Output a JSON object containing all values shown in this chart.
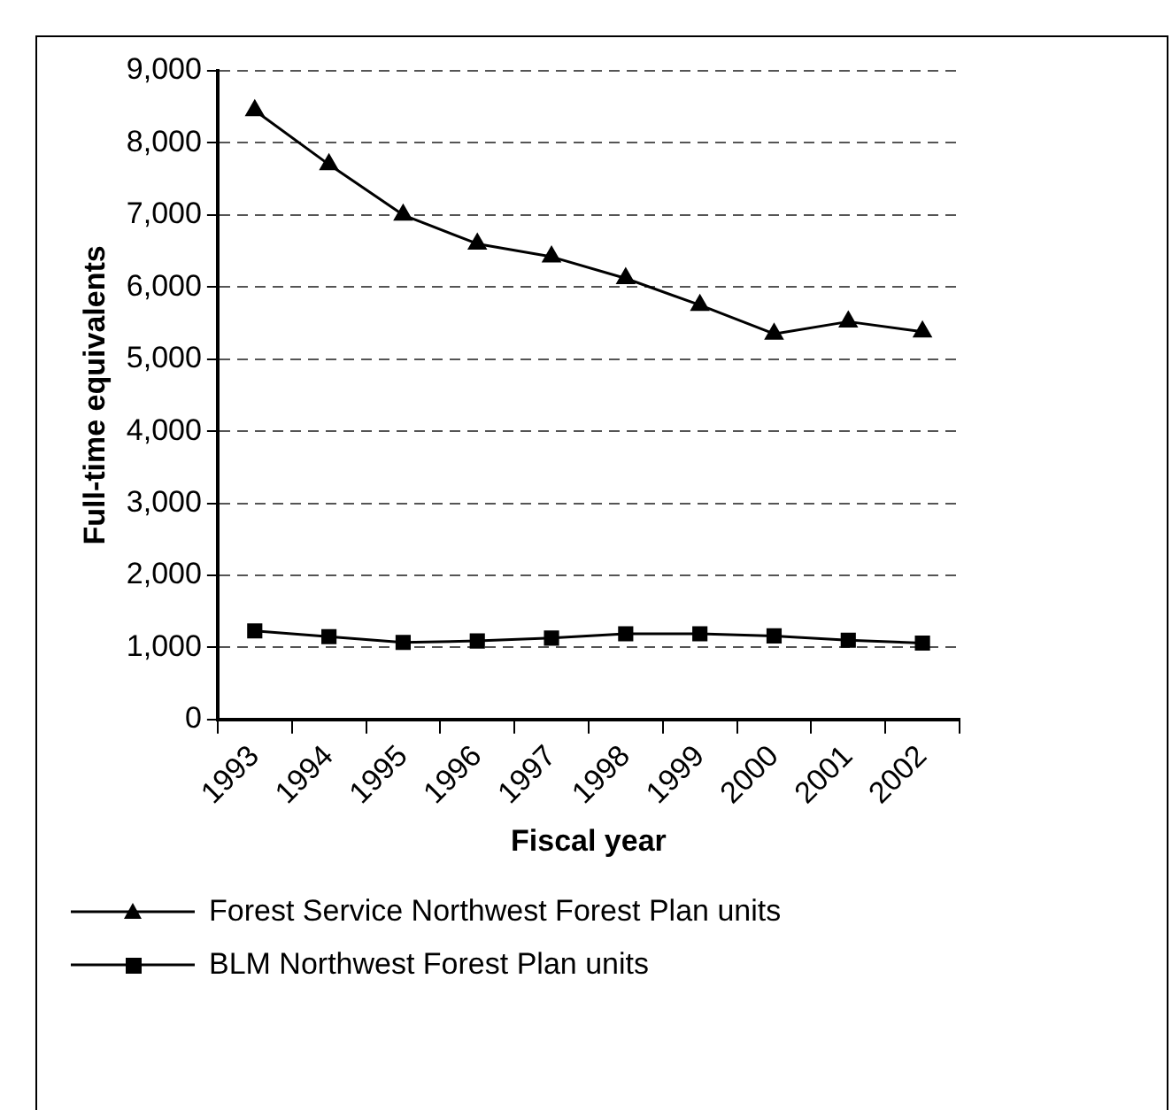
{
  "chart_data": {
    "type": "line",
    "xlabel": "Fiscal year",
    "ylabel": "Full-time equivalents",
    "categories": [
      "1993",
      "1994",
      "1995",
      "1996",
      "1997",
      "1998",
      "1999",
      "2000",
      "2001",
      "2002"
    ],
    "series": [
      {
        "name": "Forest Service Northwest Forest Plan units",
        "color": "#000000",
        "marker": "triangle",
        "values": [
          8450,
          7700,
          7000,
          6600,
          6420,
          6120,
          5750,
          5350,
          5520,
          5380
        ]
      },
      {
        "name": "BLM Northwest Forest Plan units",
        "color": "#000000",
        "marker": "square",
        "values": [
          1230,
          1150,
          1070,
          1090,
          1130,
          1190,
          1190,
          1160,
          1100,
          1060
        ]
      }
    ],
    "ylim": [
      0,
      9000
    ],
    "yticks": [
      0,
      {
        "value": 1000,
        "label": "1,000"
      },
      {
        "value": 2000,
        "label": "2,000"
      },
      {
        "value": 3000,
        "label": "3,000"
      },
      {
        "value": 4000,
        "label": "4,000"
      },
      {
        "value": 5000,
        "label": "5,000"
      },
      {
        "value": 6000,
        "label": "6,000"
      },
      {
        "value": 7000,
        "label": "7,000"
      },
      {
        "value": 8000,
        "label": "8,000"
      },
      {
        "value": 9000,
        "label": "9,000"
      }
    ],
    "grid": "y",
    "legend": "bottom",
    "line_style": "solid"
  }
}
